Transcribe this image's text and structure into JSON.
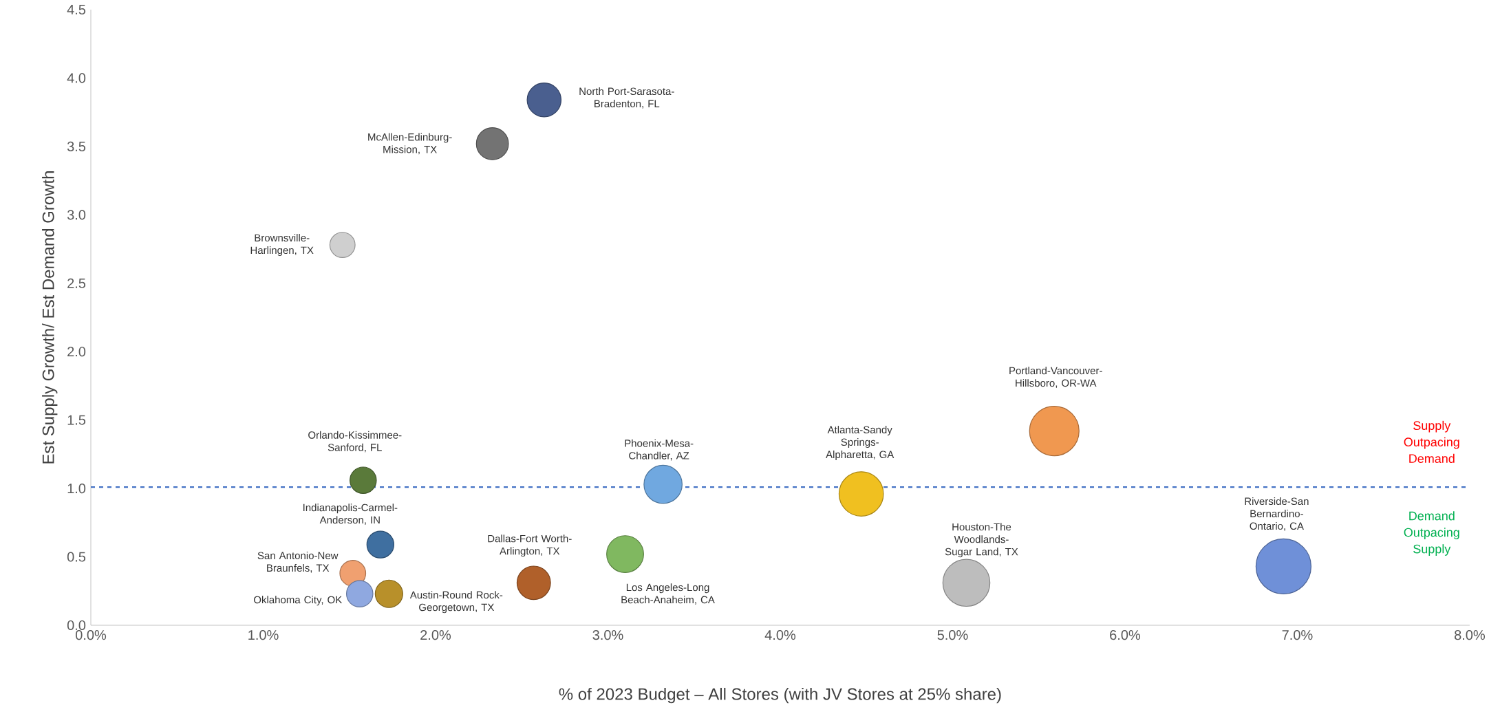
{
  "chart_data": {
    "type": "bubble",
    "xlabel": "% of 2023 Budget – All Stores (with JV Stores at 25% share)",
    "ylabel": "Est Supply Growth/ Est Demand Growth",
    "xlim": [
      0,
      8
    ],
    "ylim": [
      0,
      4.5
    ],
    "xticks": [
      {
        "value": 0,
        "label": "0.0%"
      },
      {
        "value": 1,
        "label": "1.0%"
      },
      {
        "value": 2,
        "label": "2.0%"
      },
      {
        "value": 3,
        "label": "3.0%"
      },
      {
        "value": 4,
        "label": "4.0%"
      },
      {
        "value": 5,
        "label": "5.0%"
      },
      {
        "value": 6,
        "label": "6.0%"
      },
      {
        "value": 7,
        "label": "7.0%"
      },
      {
        "value": 8,
        "label": "8.0%"
      }
    ],
    "yticks": [
      {
        "value": 0,
        "label": "0.0"
      },
      {
        "value": 0.5,
        "label": "0.5"
      },
      {
        "value": 1,
        "label": "1.0"
      },
      {
        "value": 1.5,
        "label": "1.5"
      },
      {
        "value": 2,
        "label": "2.0"
      },
      {
        "value": 2.5,
        "label": "2.5"
      },
      {
        "value": 3,
        "label": "3.0"
      },
      {
        "value": 3.5,
        "label": "3.5"
      },
      {
        "value": 4,
        "label": "4.0"
      },
      {
        "value": 4.5,
        "label": "4.5"
      }
    ],
    "x": [
      2.63,
      2.33,
      1.46,
      1.58,
      1.68,
      1.52,
      1.56,
      1.73,
      2.57,
      3.1,
      3.32,
      4.47,
      5.08,
      5.59,
      6.92
    ],
    "values": [
      3.84,
      3.52,
      2.78,
      1.06,
      0.59,
      0.38,
      0.23,
      0.23,
      0.31,
      0.52,
      1.03,
      0.96,
      0.31,
      1.42,
      0.43
    ],
    "sizes": [
      0.38,
      0.34,
      0.21,
      0.23,
      0.24,
      0.22,
      0.23,
      0.25,
      0.37,
      0.45,
      0.48,
      0.65,
      0.73,
      0.81,
      1
    ],
    "colors": [
      "#4a5f8f",
      "#737373",
      "#cfcfcf",
      "#5a7a3a",
      "#3f6fa0",
      "#f0a070",
      "#8fa8e0",
      "#b8902a",
      "#b0602a",
      "#80b860",
      "#70a8e0",
      "#f0c020",
      "#bdbdbd",
      "#f09850",
      "#6f90d8"
    ],
    "annotations": [
      "North Port-Sarasota-Bradenton, FL",
      "McAllen-Edinburg-Mission, TX",
      "Brownsville-Harlingen, TX",
      "Orlando-Kissimmee-Sanford, FL",
      "Indianapolis-Carmel-Anderson, IN",
      "San Antonio-New Braunfels, TX",
      "Oklahoma City, OK",
      "Austin-Round Rock-Georgetown, TX",
      "Dallas-Fort Worth-Arlington, TX",
      "Los Angeles-Long Beach-Anaheim, CA",
      "Phoenix-Mesa-Chandler, AZ",
      "Atlanta-Sandy Springs-Alpharetta, GA",
      "Houston-The Woodlands-Sugar Land, TX",
      "Portland-Vancouver-Hillsboro, OR-WA",
      "Riverside-San Bernardino-Ontario, CA",
      "Supply Outpacing Demand",
      "Demand Outpacing Supply"
    ],
    "ref_lines": [
      {
        "axis": "y",
        "value": 1.01,
        "color": "#4472c4",
        "line_style": "dashed"
      }
    ]
  }
}
